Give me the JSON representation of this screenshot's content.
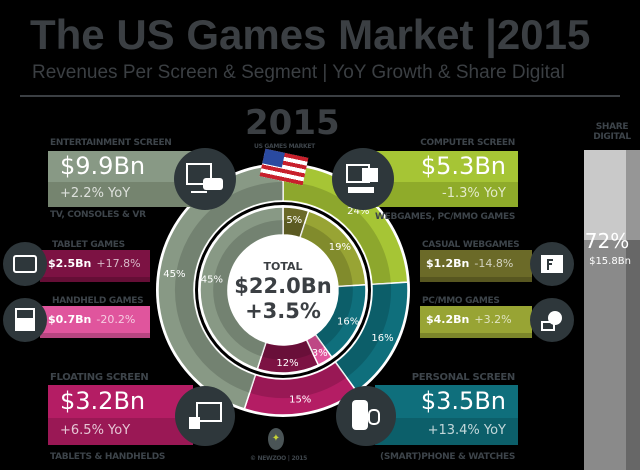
{
  "header": {
    "title": "The US Games Market |2015",
    "subtitle": "Revenues Per Screen & Segment | YoY Growth & Share Digital"
  },
  "year": {
    "value": "2015",
    "caption": "US GAMES MARKET"
  },
  "total": {
    "label": "TOTAL",
    "value": "$22.0Bn",
    "growth": "+3.5%"
  },
  "segments": {
    "entertainment": {
      "label": "ENTERTAINMENT SCREEN",
      "value": "$9.9Bn",
      "yoy": "+2.2% YoY",
      "sub": "TV, CONSOLES & VR"
    },
    "computer": {
      "label": "COMPUTER SCREEN",
      "value": "$5.3Bn",
      "yoy": "-1.3% YoY",
      "sub": "WEBGAMES, PC/MMO GAMES"
    },
    "floating": {
      "label": "FLOATING SCREEN",
      "value": "$3.2Bn",
      "yoy": "+6.5% YoY",
      "sub": "TABLETS & HANDHELDS"
    },
    "personal": {
      "label": "PERSONAL SCREEN",
      "value": "$3.5Bn",
      "yoy": "+13.4% YoY",
      "sub": "(SMART)PHONE & WATCHES"
    }
  },
  "subsegments": {
    "tablet": {
      "label": "TABLET GAMES",
      "value": "$2.5Bn",
      "yoy": "+17.8%"
    },
    "handheld": {
      "label": "HANDHELD GAMES",
      "value": "$0.7Bn",
      "yoy": "-20.2%"
    },
    "casual": {
      "label": "CASUAL WEBGAMES",
      "value": "$1.2Bn",
      "yoy": "-14.8%"
    },
    "pcmmo": {
      "label": "PC/MMO GAMES",
      "value": "$4.2Bn",
      "yoy": "+3.2%"
    }
  },
  "share_digital": {
    "label1": "SHARE",
    "label2": "DIGITAL",
    "percent": "72%",
    "value": "$15.8Bn",
    "fraction": 0.72
  },
  "footer": {
    "credit": "© NEWZOO | 2015"
  },
  "chart_data": {
    "type": "pie",
    "outer": [
      {
        "name": "Computer Screen",
        "value": 24,
        "label": "24%",
        "color": "#a6c535"
      },
      {
        "name": "Personal Screen",
        "value": 16,
        "label": "16%",
        "color": "#0f6f7c"
      },
      {
        "name": "Floating Screen",
        "value": 15,
        "label": "15%",
        "color": "#b41d64"
      },
      {
        "name": "Entertainment Screen",
        "value": 45,
        "label": "45%",
        "color": "#889985"
      }
    ],
    "inner": [
      {
        "name": "Casual Webgames",
        "value": 5,
        "label": "5%",
        "color": "#6b6a28"
      },
      {
        "name": "PC/MMO Games",
        "value": 19,
        "label": "19%",
        "color": "#98a434"
      },
      {
        "name": "Smartphone & Watches",
        "value": 16,
        "label": "16%",
        "color": "#0f6f7c"
      },
      {
        "name": "Handheld Games",
        "value": 3,
        "label": "3%",
        "color": "#e0559d"
      },
      {
        "name": "Tablet Games",
        "value": 12,
        "label": "12%",
        "color": "#7c1243"
      },
      {
        "name": "TV, Consoles & VR",
        "value": 45,
        "label": "45%",
        "color": "#889985"
      }
    ]
  }
}
